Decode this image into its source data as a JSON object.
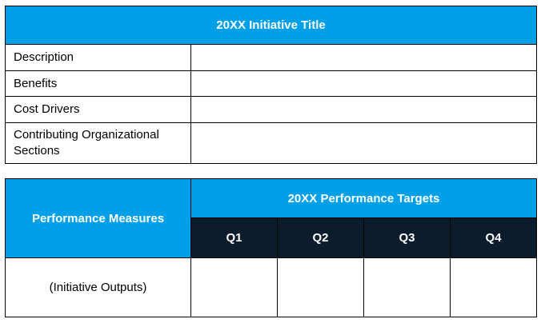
{
  "initiative_table": {
    "title": "20XX Initiative  Title",
    "rows": [
      {
        "label": "Description",
        "value": ""
      },
      {
        "label": "Benefits",
        "value": ""
      },
      {
        "label": "Cost Drivers",
        "value": ""
      },
      {
        "label": "Contributing Organizational Sections",
        "value": ""
      }
    ]
  },
  "performance_table": {
    "measures_header": "Performance Measures",
    "targets_header": "20XX Performance Targets",
    "quarters": [
      "Q1",
      "Q2",
      "Q3",
      "Q4"
    ],
    "row_label": "(Initiative  Outputs)",
    "row_values": [
      "",
      "",
      "",
      ""
    ]
  },
  "colors": {
    "header_blue": "#00a0e9",
    "header_navy": "#0b1c2c",
    "border": "#000000"
  }
}
